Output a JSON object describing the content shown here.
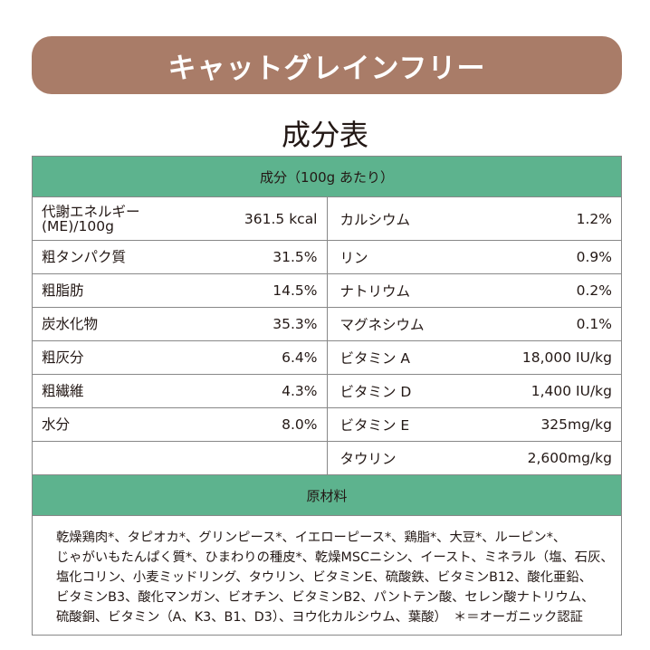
{
  "header": {
    "title": "キャットグレインフリー",
    "subtitle": "成分表"
  },
  "table": {
    "heading": "成分（100g あたり）",
    "left": [
      {
        "name": [
          "代謝エネルギー",
          "(ME)/100g"
        ],
        "value": "361.5 kcal"
      },
      {
        "name": [
          "粗タンパク質"
        ],
        "value": "31.5%"
      },
      {
        "name": [
          "粗脂肪"
        ],
        "value": "14.5%"
      },
      {
        "name": [
          "炭水化物"
        ],
        "value": "35.3%"
      },
      {
        "name": [
          "粗灰分"
        ],
        "value": "6.4%"
      },
      {
        "name": [
          "粗繊維"
        ],
        "value": "4.3%"
      },
      {
        "name": [
          "水分"
        ],
        "value": "8.0%"
      }
    ],
    "right": [
      {
        "name": "カルシウム",
        "value": "1.2%"
      },
      {
        "name": "リン",
        "value": "0.9%"
      },
      {
        "name": "ナトリウム",
        "value": "0.2%"
      },
      {
        "name": "マグネシウム",
        "value": "0.1%"
      },
      {
        "name": "ビタミン A",
        "value": "18,000 IU/kg"
      },
      {
        "name": "ビタミン D",
        "value": "1,400 IU/kg"
      },
      {
        "name": "ビタミン E",
        "value": "325mg/kg"
      },
      {
        "name": "タウリン",
        "value": "2,600mg/kg"
      }
    ]
  },
  "ingredients": {
    "heading": "原材料",
    "lines": [
      "乾燥鶏肉*、タピオカ*、グリンピース*、イエローピース*、鶏脂*、大豆*、ルーピン*、",
      "じゃがいもたんぱく質*、ひまわりの種皮*、乾燥MSCニシン、イースト、ミネラル（塩、石灰、",
      "塩化コリン、小麦ミッドリング、タウリン、ビタミンE、硫酸鉄、ビタミンB12、酸化亜鉛、",
      "ビタミンB3、酸化マンガン、ビオチン、ビタミンB2、パントテン酸、セレン酸ナトリウム、",
      "硫酸銅、ビタミン（A、K3、B1、D3）、ヨウ化カルシウム、葉酸）　＊＝オーガニック認証"
    ]
  }
}
